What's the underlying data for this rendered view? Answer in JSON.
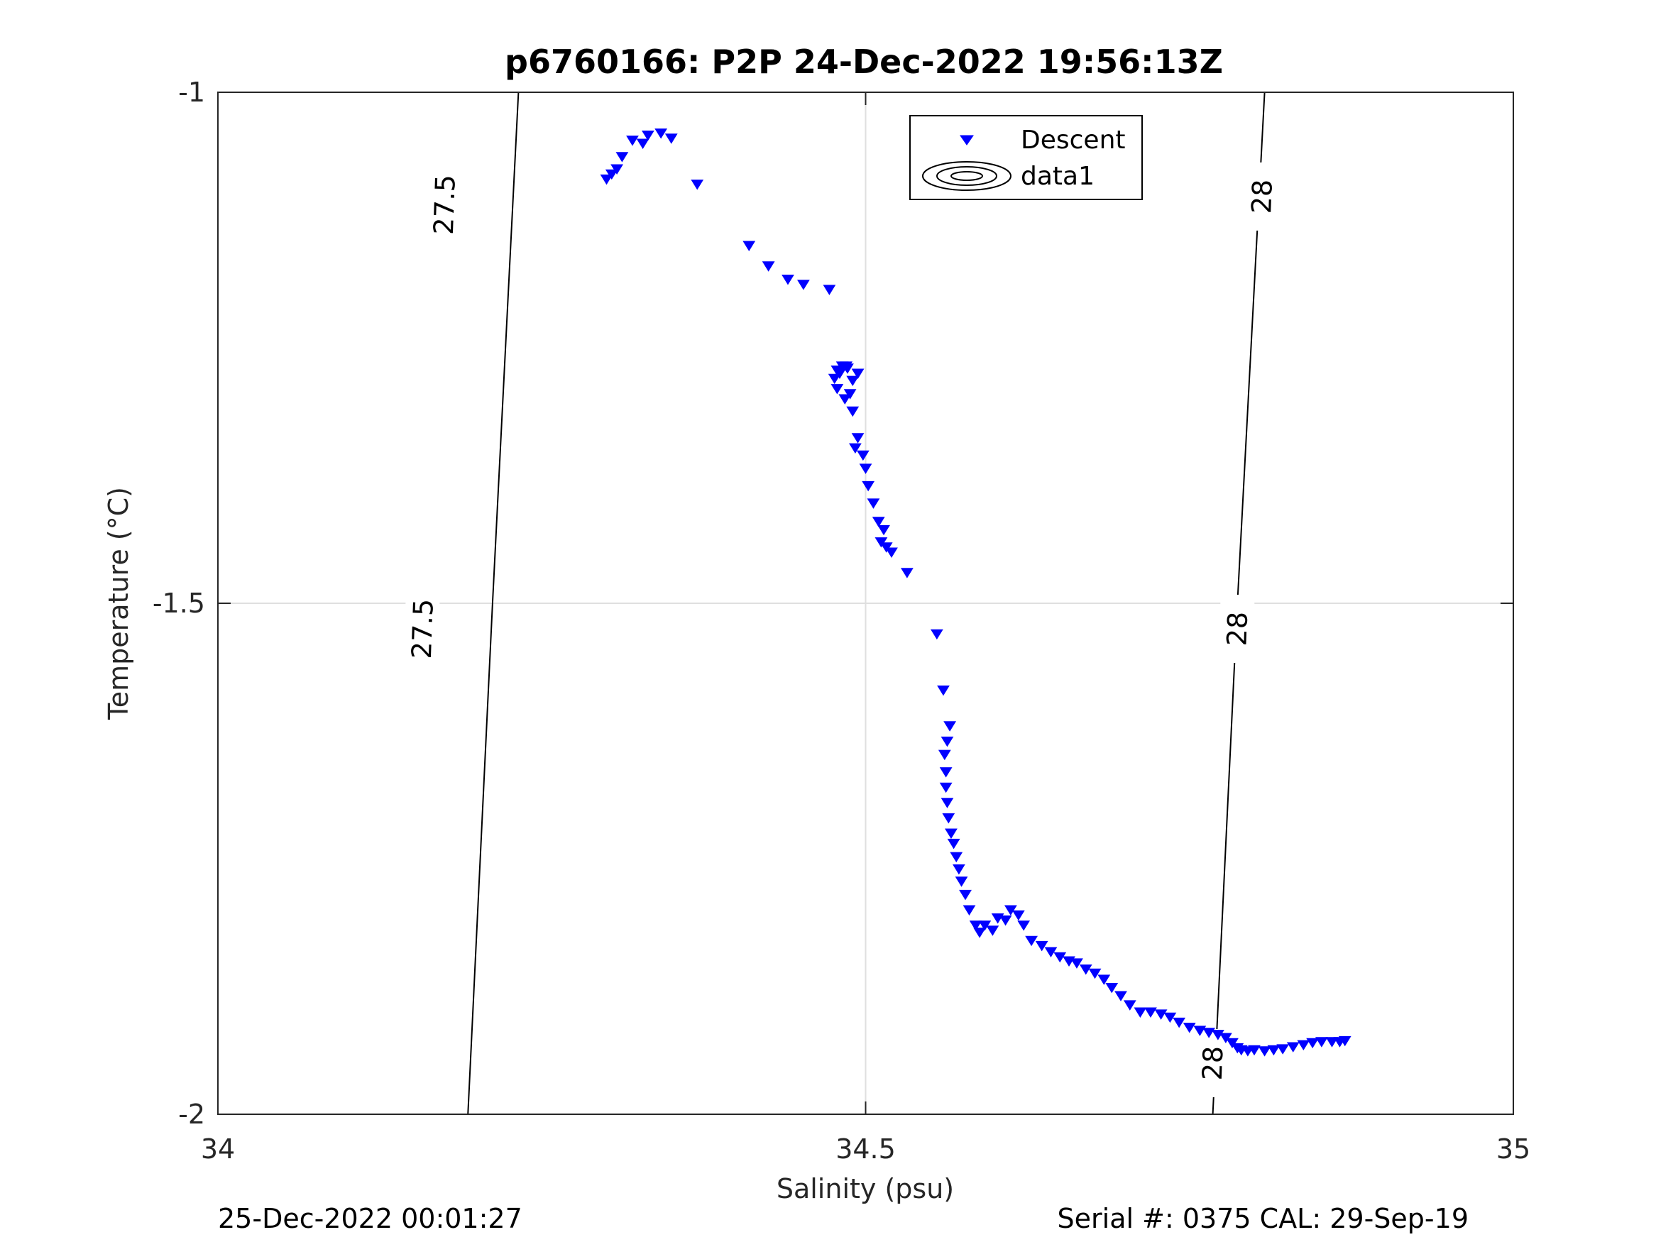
{
  "chart_data": {
    "type": "scatter",
    "title": "p6760166: P2P 24-Dec-2022 19:56:13Z",
    "xlabel": "Salinity (psu)",
    "ylabel": "Temperature (°C)",
    "xlim": [
      34,
      35
    ],
    "ylim": [
      -2,
      -1
    ],
    "x_ticks": [
      34,
      34.5,
      35
    ],
    "x_tick_labels": [
      "34",
      "34.5",
      "35"
    ],
    "y_ticks": [
      -2,
      -1.5,
      -1
    ],
    "y_tick_labels": [
      "-2",
      "-1.5",
      "-1"
    ],
    "grid": true,
    "legend_position": "top-right",
    "series": [
      {
        "name": "Descent",
        "marker": "downward-triangle",
        "color": "#0000ff",
        "points": [
          [
            34.3,
            -1.085
          ],
          [
            34.304,
            -1.08
          ],
          [
            34.308,
            -1.075
          ],
          [
            34.312,
            -1.063
          ],
          [
            34.32,
            -1.047
          ],
          [
            34.328,
            -1.05
          ],
          [
            34.332,
            -1.042
          ],
          [
            34.342,
            -1.04
          ],
          [
            34.35,
            -1.045
          ],
          [
            34.37,
            -1.09
          ],
          [
            34.41,
            -1.15
          ],
          [
            34.425,
            -1.17
          ],
          [
            34.44,
            -1.183
          ],
          [
            34.452,
            -1.188
          ],
          [
            34.472,
            -1.193
          ],
          [
            34.476,
            -1.28
          ],
          [
            34.478,
            -1.29
          ],
          [
            34.48,
            -1.275
          ],
          [
            34.484,
            -1.3
          ],
          [
            34.488,
            -1.295
          ],
          [
            34.49,
            -1.282
          ],
          [
            34.494,
            -1.275
          ],
          [
            34.486,
            -1.27
          ],
          [
            34.482,
            -1.268
          ],
          [
            34.478,
            -1.272
          ],
          [
            34.485,
            -1.268
          ],
          [
            34.49,
            -1.312
          ],
          [
            34.492,
            -1.348
          ],
          [
            34.494,
            -1.338
          ],
          [
            34.498,
            -1.355
          ],
          [
            34.5,
            -1.368
          ],
          [
            34.502,
            -1.385
          ],
          [
            34.506,
            -1.402
          ],
          [
            34.51,
            -1.42
          ],
          [
            34.512,
            -1.44
          ],
          [
            34.514,
            -1.428
          ],
          [
            34.516,
            -1.445
          ],
          [
            34.52,
            -1.45
          ],
          [
            34.532,
            -1.47
          ],
          [
            34.555,
            -1.53
          ],
          [
            34.56,
            -1.585
          ],
          [
            34.565,
            -1.62
          ],
          [
            34.563,
            -1.635
          ],
          [
            34.561,
            -1.648
          ],
          [
            34.562,
            -1.665
          ],
          [
            34.562,
            -1.68
          ],
          [
            34.563,
            -1.695
          ],
          [
            34.564,
            -1.71
          ],
          [
            34.566,
            -1.725
          ],
          [
            34.568,
            -1.735
          ],
          [
            34.57,
            -1.748
          ],
          [
            34.572,
            -1.76
          ],
          [
            34.574,
            -1.772
          ],
          [
            34.577,
            -1.785
          ],
          [
            34.58,
            -1.8
          ],
          [
            34.585,
            -1.815
          ],
          [
            34.588,
            -1.822
          ],
          [
            34.592,
            -1.815
          ],
          [
            34.598,
            -1.82
          ],
          [
            34.602,
            -1.808
          ],
          [
            34.608,
            -1.81
          ],
          [
            34.612,
            -1.8
          ],
          [
            34.618,
            -1.805
          ],
          [
            34.622,
            -1.815
          ],
          [
            34.628,
            -1.83
          ],
          [
            34.636,
            -1.835
          ],
          [
            34.643,
            -1.841
          ],
          [
            34.65,
            -1.846
          ],
          [
            34.657,
            -1.85
          ],
          [
            34.663,
            -1.852
          ],
          [
            34.67,
            -1.858
          ],
          [
            34.677,
            -1.862
          ],
          [
            34.684,
            -1.868
          ],
          [
            34.69,
            -1.876
          ],
          [
            34.697,
            -1.884
          ],
          [
            34.704,
            -1.893
          ],
          [
            34.712,
            -1.9
          ],
          [
            34.72,
            -1.9
          ],
          [
            34.728,
            -1.902
          ],
          [
            34.735,
            -1.905
          ],
          [
            34.742,
            -1.91
          ],
          [
            34.75,
            -1.915
          ],
          [
            34.758,
            -1.918
          ],
          [
            34.765,
            -1.92
          ],
          [
            34.772,
            -1.922
          ],
          [
            34.778,
            -1.925
          ],
          [
            34.783,
            -1.93
          ],
          [
            34.787,
            -1.935
          ],
          [
            34.79,
            -1.937
          ],
          [
            34.795,
            -1.938
          ],
          [
            34.8,
            -1.937
          ],
          [
            34.808,
            -1.938
          ],
          [
            34.815,
            -1.937
          ],
          [
            34.822,
            -1.936
          ],
          [
            34.83,
            -1.934
          ],
          [
            34.838,
            -1.932
          ],
          [
            34.845,
            -1.93
          ],
          [
            34.852,
            -1.929
          ],
          [
            34.86,
            -1.929
          ],
          [
            34.866,
            -1.929
          ],
          [
            34.87,
            -1.928
          ]
        ]
      },
      {
        "name": "data1",
        "type": "contour",
        "color": "#000000",
        "levels": [
          {
            "label": "27.5",
            "points": [
              [
                34.193,
                -2.0
              ],
              [
                34.212,
                -1.5
              ],
              [
                34.232,
                -1.0
              ]
            ],
            "label_positions": [
              [
                34.175,
                -1.11
              ],
              [
                34.158,
                -1.525
              ]
            ]
          },
          {
            "label": "28",
            "points": [
              [
                34.768,
                -2.0
              ],
              [
                34.787,
                -1.5
              ],
              [
                34.808,
                -1.0
              ]
            ],
            "label_positions": [
              [
                34.806,
                -1.102
              ],
              [
                34.787,
                -1.525
              ],
              [
                34.768,
                -1.95
              ]
            ]
          }
        ]
      }
    ]
  },
  "footer": {
    "timestamp": "25-Dec-2022 00:01:27",
    "serial": "Serial #: 0375  CAL: 29-Sep-19"
  }
}
